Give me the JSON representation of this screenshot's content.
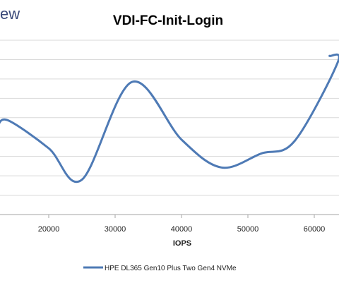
{
  "brand_fragment": "ew",
  "chart_data": {
    "type": "line",
    "title": "VDI-FC-Init-Login",
    "xlabel": "IOPS",
    "ylabel": "",
    "xlim": [
      12300,
      64000
    ],
    "ylim": [
      0,
      10
    ],
    "x_ticks": [
      20000,
      30000,
      40000,
      50000,
      60000
    ],
    "grid": true,
    "legend_position": "bottom",
    "series": [
      {
        "name": "HPE DL365 Gen10 Plus Two Gen4 NVMe",
        "color": "#4e7ab5",
        "x": [
          12300,
          13900,
          20000,
          25000,
          32500,
          40000,
          46000,
          52000,
          57000,
          63500,
          62300
        ],
        "y": [
          5.1,
          5.4,
          3.8,
          2.0,
          7.6,
          4.3,
          2.7,
          3.5,
          4.2,
          8.7,
          9.1
        ]
      }
    ]
  }
}
